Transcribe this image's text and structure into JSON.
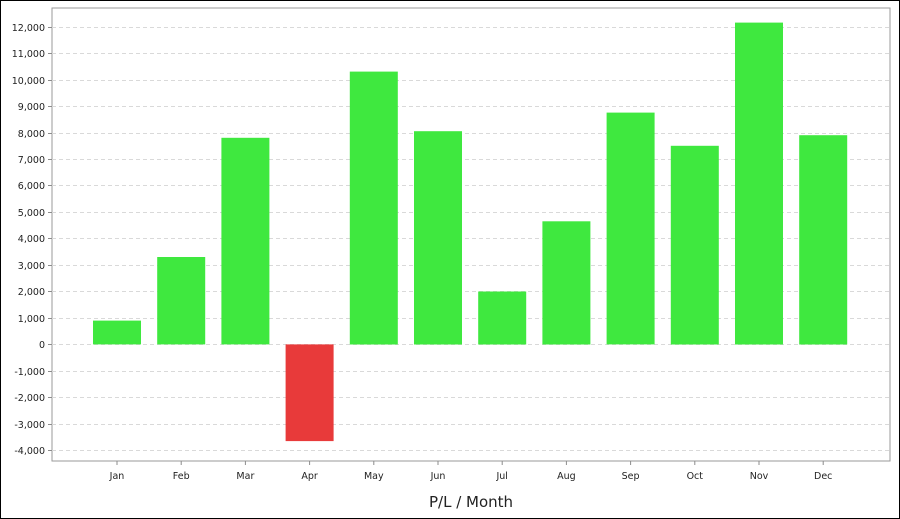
{
  "chart_data": {
    "type": "bar",
    "title": "",
    "xlabel": "P/L / Month",
    "ylabel": "",
    "categories": [
      "Jan",
      "Feb",
      "Mar",
      "Apr",
      "May",
      "Jun",
      "Jul",
      "Aug",
      "Sep",
      "Oct",
      "Nov",
      "Dec"
    ],
    "values": [
      900,
      3300,
      7800,
      -3650,
      10300,
      8050,
      2000,
      4650,
      8750,
      7500,
      12150,
      7900
    ],
    "ylim": [
      -4400,
      12700
    ],
    "yticks": [
      -4000,
      -3000,
      -2000,
      -1000,
      0,
      1000,
      2000,
      3000,
      4000,
      5000,
      6000,
      7000,
      8000,
      9000,
      10000,
      11000,
      12000
    ],
    "ytick_labels": [
      "-4,000",
      "-3,000",
      "-2,000",
      "-1,000",
      "0",
      "1,000",
      "2,000",
      "3,000",
      "4,000",
      "5,000",
      "6,000",
      "7,000",
      "8,000",
      "9,000",
      "10,000",
      "11,000",
      "12,000"
    ],
    "grid": true,
    "legend": "none",
    "colors": {
      "positive": "#3fe83f",
      "negative": "#e83a3a",
      "grid": "#d9d9d9",
      "axis": "#8c8c8c"
    }
  }
}
